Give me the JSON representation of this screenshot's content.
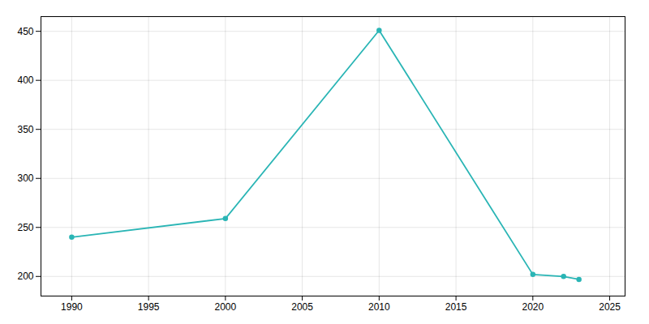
{
  "chart_data": {
    "type": "line",
    "x": [
      1990,
      2000,
      2010,
      2020,
      2022,
      2023
    ],
    "values": [
      240,
      259,
      451,
      202,
      200,
      197
    ],
    "color": "#2ab5b5",
    "marker": "circle",
    "xlim": [
      1988,
      2026
    ],
    "ylim": [
      180,
      465
    ],
    "xticks": [
      1990,
      1995,
      2000,
      2005,
      2010,
      2015,
      2020,
      2025
    ],
    "yticks": [
      200,
      250,
      300,
      350,
      400,
      450
    ],
    "grid": true
  }
}
